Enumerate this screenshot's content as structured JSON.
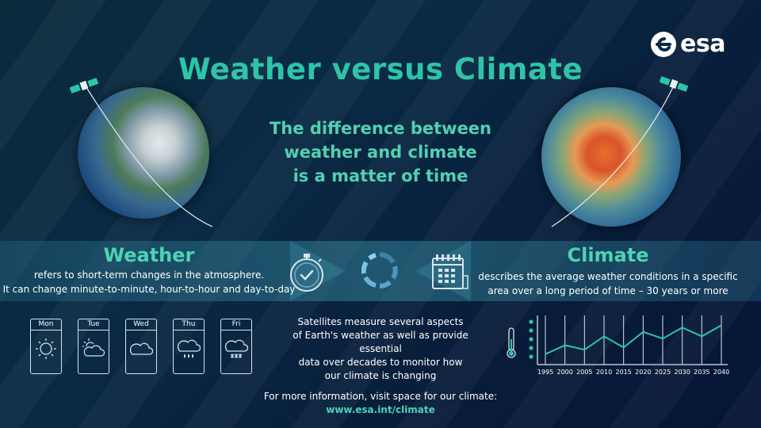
{
  "header": {
    "title": "Weather versus Climate",
    "subtitle_lines": [
      "The difference between",
      "weather and climate",
      "is a matter of time"
    ],
    "logo_text": "esa"
  },
  "weather": {
    "heading": "Weather",
    "desc_lines": [
      "refers to short-term changes in the atmosphere.",
      "It can change minute-to-minute, hour-to-hour and day-to-day"
    ]
  },
  "climate": {
    "heading": "Climate",
    "desc_lines": [
      "describes the average weather conditions in a specific",
      "area over a long period of time – 30 years or more"
    ]
  },
  "forecast": {
    "days": [
      {
        "label": "Mon",
        "icon": "sun-icon"
      },
      {
        "label": "Tue",
        "icon": "sun-cloud-icon"
      },
      {
        "label": "Wed",
        "icon": "cloud-icon"
      },
      {
        "label": "Thu",
        "icon": "rain-cloud-icon"
      },
      {
        "label": "Fri",
        "icon": "snow-cloud-icon"
      }
    ]
  },
  "satellite_text_lines": [
    "Satellites measure several aspects",
    "of Earth's weather as well as provide essential",
    "data over decades to monitor how",
    "our climate is changing"
  ],
  "footer": {
    "info": "For more information, visit space for our climate:",
    "link": "www.esa.int/climate"
  },
  "colors": {
    "accent": "#2ec4a7",
    "accent_light": "#4ed3b4"
  },
  "chart_data": {
    "type": "line",
    "title": "",
    "xlabel": "",
    "ylabel": "",
    "x": [
      1995,
      2000,
      2005,
      2010,
      2015,
      2020,
      2025,
      2030,
      2035,
      2040
    ],
    "x_tick_labels": [
      "1995",
      "2000",
      "2005",
      "2010",
      "2015",
      "2020",
      "2025",
      "2030",
      "2035",
      "2040"
    ],
    "series": [
      {
        "values": [
          2,
          4,
          3,
          6,
          3.5,
          7,
          5.5,
          8,
          6,
          8.5
        ]
      }
    ],
    "ylim": [
      0,
      10
    ],
    "grid": "vertical",
    "legend": "none"
  }
}
